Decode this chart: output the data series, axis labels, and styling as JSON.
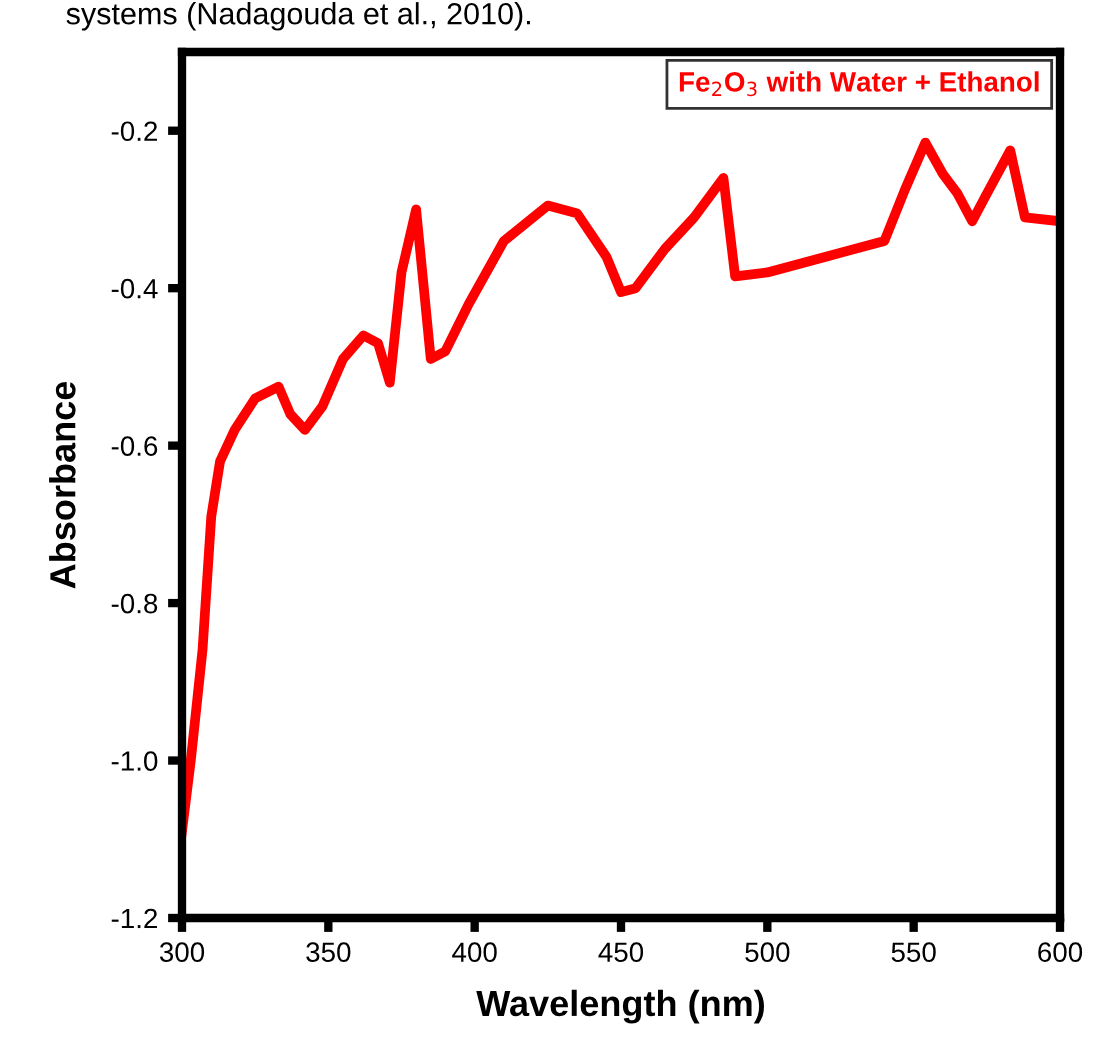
{
  "chart_data": {
    "type": "line",
    "xlabel": "Wavelength (nm)",
    "ylabel": "Absorbance",
    "annotations": [
      "systems (Nadagouda et al., 2010)."
    ],
    "x": [
      300,
      303,
      307,
      310,
      313,
      318,
      325,
      333,
      337,
      342,
      348,
      355,
      362,
      367,
      371,
      375,
      380,
      385,
      390,
      398,
      410,
      425,
      435,
      445,
      450,
      455,
      465,
      475,
      485,
      489,
      500,
      520,
      540,
      547,
      554,
      560,
      565,
      570,
      575,
      583,
      588,
      600
    ],
    "series": [
      {
        "name": "Fe$_{2}$O$_{3}$ with Water + Ethanol",
        "color": "#ff0000",
        "values": [
          -1.09,
          -1.0,
          -0.86,
          -0.69,
          -0.62,
          -0.58,
          -0.54,
          -0.525,
          -0.56,
          -0.58,
          -0.55,
          -0.49,
          -0.46,
          -0.47,
          -0.52,
          -0.38,
          -0.3,
          -0.49,
          -0.48,
          -0.42,
          -0.34,
          -0.295,
          -0.305,
          -0.36,
          -0.405,
          -0.4,
          -0.35,
          -0.31,
          -0.26,
          -0.385,
          -0.38,
          -0.36,
          -0.34,
          -0.275,
          -0.215,
          -0.255,
          -0.28,
          -0.315,
          -0.28,
          -0.225,
          -0.31,
          -0.315
        ]
      }
    ],
    "xlim": [
      300,
      600
    ],
    "xticks": [
      300,
      350,
      400,
      450,
      500,
      550,
      600
    ],
    "ylim": [
      -1.2,
      -0.1
    ],
    "yticks": [
      -0.2,
      -0.4,
      -0.6,
      -0.8,
      {
        "value": -1.0,
        "label": "-1.0"
      },
      -1.2
    ],
    "tick_labels": true,
    "grid": false,
    "legend": "top right",
    "marker": "none",
    "line_style": "solid"
  }
}
